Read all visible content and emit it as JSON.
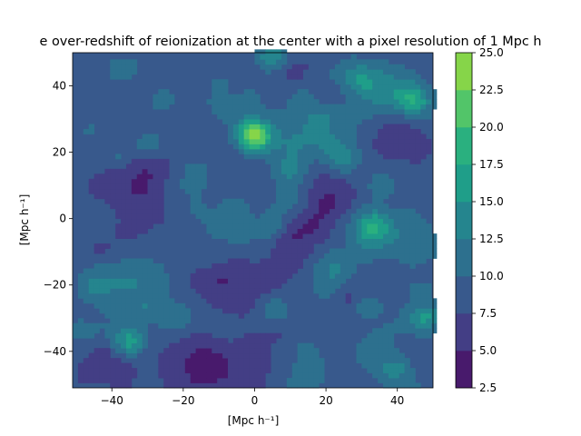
{
  "chart_data": {
    "type": "heatmap",
    "title": "e over-redshift of reionization at the center with a pixel resolution of 1 Mpc h",
    "xlabel": "[Mpc h⁻¹]",
    "ylabel": "[Mpc h⁻¹]",
    "xlim": [
      -51,
      50
    ],
    "ylim": [
      -51,
      50
    ],
    "xticks": [
      -40,
      -20,
      0,
      20,
      40
    ],
    "yticks": [
      -40,
      -20,
      0,
      20,
      40
    ],
    "xtick_labels": [
      "−40",
      "−20",
      "0",
      "20",
      "40"
    ],
    "ytick_labels": [
      "−40",
      "−20",
      "0",
      "20",
      "40"
    ],
    "colorbar": {
      "levels": [
        2.5,
        5.0,
        7.5,
        10.0,
        12.5,
        15.0,
        17.5,
        20.0,
        22.5,
        25.0
      ],
      "tick_labels": [
        "2.5",
        "5.0",
        "7.5",
        "10.0",
        "12.5",
        "15.0",
        "17.5",
        "20.0",
        "22.5",
        "25.0"
      ],
      "colors": [
        "#481a6c",
        "#433e85",
        "#38598c",
        "#2d708e",
        "#25858e",
        "#1f9e89",
        "#2ab07f",
        "#52c569",
        "#86d549",
        "#c2df23"
      ]
    },
    "background_level_color": "#38598c",
    "features": [
      {
        "x": 0,
        "y": 25,
        "peak": 24
      },
      {
        "x": -35,
        "y": -37,
        "peak": 17
      },
      {
        "x": 33,
        "y": -2,
        "peak": 16
      },
      {
        "x": 25,
        "y": 18,
        "peak": 14
      },
      {
        "x": 5,
        "y": 49,
        "peak": 15
      },
      {
        "x": 45,
        "y": 35,
        "peak": 14
      },
      {
        "x": -30,
        "y": 22,
        "peak": 13
      },
      {
        "x": -22,
        "y": -30,
        "peak": 13
      },
      {
        "x": 5,
        "y": -27,
        "peak": 13
      },
      {
        "x": 47,
        "y": -30,
        "peak": 14
      },
      {
        "x": 40,
        "y": -45,
        "peak": 13
      },
      {
        "x": -45,
        "y": -20,
        "peak": 12
      },
      {
        "x": -42,
        "y": 0,
        "peak": 12
      },
      {
        "x": 10,
        "y": 15,
        "peak": 13
      },
      {
        "x": -10,
        "y": 35,
        "peak": 11
      },
      {
        "x": 30,
        "y": 42,
        "peak": 12
      },
      {
        "x": -12,
        "y": -10,
        "peak": 11
      },
      {
        "x": 22,
        "y": -15,
        "peak": 11
      },
      {
        "x": -38,
        "y": 45,
        "peak": 11
      },
      {
        "x": 15,
        "y": -40,
        "peak": 11
      },
      {
        "x": 35,
        "y": 10,
        "peak": 12
      },
      {
        "x": -5,
        "y": 5,
        "peak": 11
      },
      {
        "x": -25,
        "y": 8,
        "peak": 11
      },
      {
        "x": 18,
        "y": 30,
        "peak": 12
      }
    ],
    "voids": [
      {
        "x": -30,
        "y": 10
      },
      {
        "x": 10,
        "y": -5
      },
      {
        "x": -15,
        "y": -45
      },
      {
        "x": 20,
        "y": 5
      },
      {
        "x": -5,
        "y": -20
      },
      {
        "x": 40,
        "y": 25
      }
    ]
  }
}
